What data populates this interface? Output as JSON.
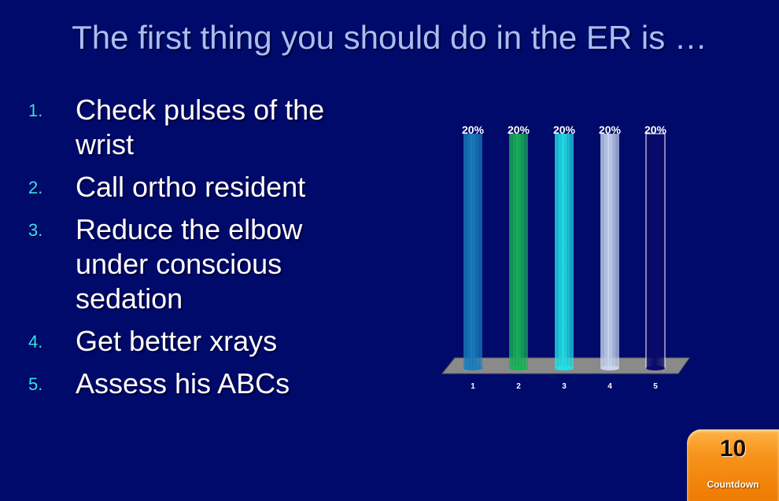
{
  "slide": {
    "title": "The first thing you should do in the ER is …"
  },
  "options": [
    {
      "number": "1.",
      "text": "Check pulses of the wrist"
    },
    {
      "number": "2.",
      "text": "Call ortho resident"
    },
    {
      "number": "3.",
      "text": "Reduce the elbow under conscious sedation"
    },
    {
      "number": "4.",
      "text": "Get better xrays"
    },
    {
      "number": "5.",
      "text": "Assess his ABCs"
    }
  ],
  "chart_data": {
    "type": "bar",
    "title": "",
    "xlabel": "",
    "ylabel": "",
    "ylim": [
      0,
      20
    ],
    "categories": [
      "1",
      "2",
      "3",
      "4",
      "5"
    ],
    "values": [
      20,
      20,
      20,
      20,
      20
    ],
    "value_labels": [
      "20%",
      "20%",
      "20%",
      "20%",
      "20%"
    ],
    "bar_colors": [
      "#1a7fbf",
      "#19b35a",
      "#22e0ea",
      "#c8d6f2",
      "#0a0a6e"
    ]
  },
  "countdown": {
    "value": "10",
    "label": "Countdown"
  }
}
